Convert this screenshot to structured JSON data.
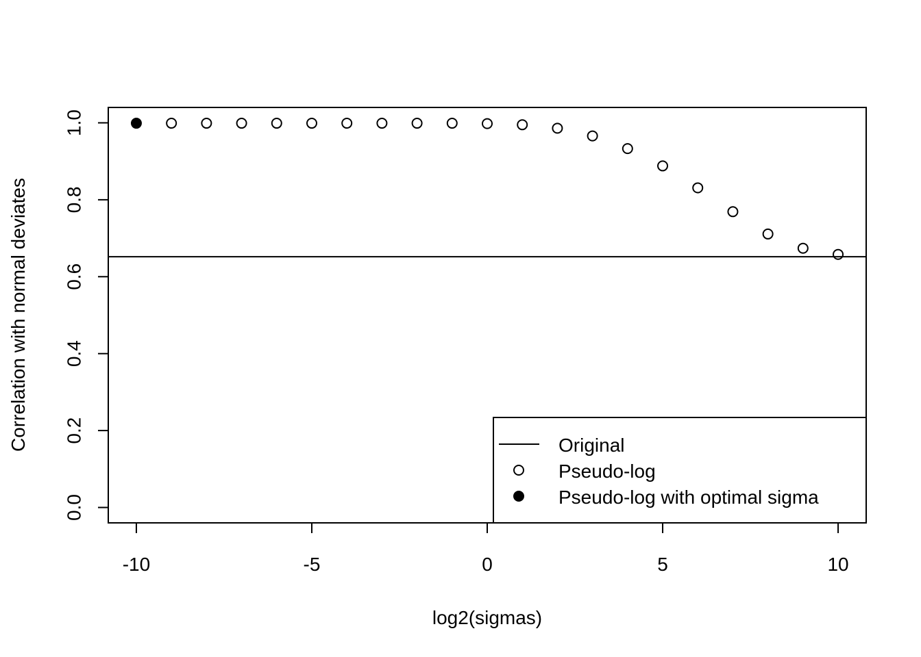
{
  "chart_data": {
    "type": "scatter",
    "xlabel": "log2(sigmas)",
    "ylabel": "Correlation with normal deviates",
    "xlim": [
      -10.8,
      10.8
    ],
    "ylim": [
      -0.04,
      1.04
    ],
    "xticks": [
      -10,
      -5,
      0,
      5,
      10
    ],
    "xtick_labels": [
      "-10",
      "-5",
      "0",
      "5",
      "10"
    ],
    "yticks": [
      0.0,
      0.2,
      0.4,
      0.6,
      0.8,
      1.0
    ],
    "ytick_labels": [
      "0.0",
      "0.2",
      "0.4",
      "0.6",
      "0.8",
      "1.0"
    ],
    "grid": false,
    "legend_position": "bottom-right",
    "legend": [
      {
        "label": "Original",
        "symbol": "line"
      },
      {
        "label": "Pseudo-log",
        "symbol": "open-circle"
      },
      {
        "label": "Pseudo-log with optimal sigma",
        "symbol": "filled-circle"
      }
    ],
    "original": {
      "name": "Original",
      "y": 0.652
    },
    "series": [
      {
        "name": "Pseudo-log",
        "x": [
          -10,
          -9,
          -8,
          -7,
          -6,
          -5,
          -4,
          -3,
          -2,
          -1,
          0,
          1,
          2,
          3,
          4,
          5,
          6,
          7,
          8,
          9,
          10
        ],
        "y": [
          0.999,
          0.999,
          0.999,
          0.999,
          0.999,
          0.999,
          0.999,
          0.999,
          0.999,
          0.999,
          0.998,
          0.995,
          0.986,
          0.966,
          0.933,
          0.888,
          0.831,
          0.769,
          0.711,
          0.674,
          0.658
        ]
      }
    ],
    "optimal": {
      "name": "Pseudo-log with optimal sigma",
      "x": -10,
      "y": 0.999
    }
  }
}
